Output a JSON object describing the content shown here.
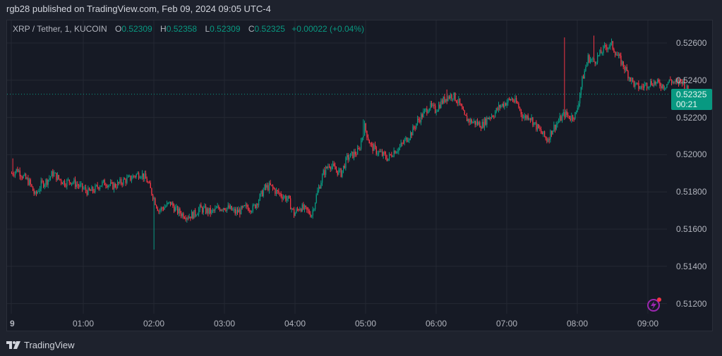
{
  "header": {
    "published_line": "rgb28 published on TradingView.com, Feb 09, 2024 09:05 UTC-4"
  },
  "legend": {
    "symbol": "XRP / Tether, 1, KUCOIN",
    "open_key": "O",
    "open": "0.52309",
    "high_key": "H",
    "high": "0.52358",
    "low_key": "L",
    "low": "0.52309",
    "close_key": "C",
    "close": "0.52325",
    "change": "+0.00022 (+0.04%)"
  },
  "last_price": {
    "value": "0.52325",
    "countdown": "00:21"
  },
  "footer": {
    "brand": "TradingView"
  },
  "colors": {
    "up": "#089981",
    "down": "#f23645",
    "background": "#161a25",
    "frame": "#1e222d",
    "grid": "#242833",
    "text": "#b2b5be",
    "alert_icon": "#9c27b0"
  },
  "chart_data": {
    "type": "candlestick",
    "title": "XRP / Tether, 1, KUCOIN",
    "interval": "1 minute",
    "xlabel": "",
    "ylabel": "",
    "y_tick_labels": [
      "0.52600",
      "0.52400",
      "0.52200",
      "0.52000",
      "0.51800",
      "0.51600",
      "0.51400",
      "0.51200"
    ],
    "ylim": [
      0.5117,
      0.5274
    ],
    "x_tick_labels": [
      "9",
      "01:00",
      "02:00",
      "03:00",
      "04:00",
      "05:00",
      "06:00",
      "07:00",
      "08:00",
      "09:00"
    ],
    "grid": true,
    "last_price_line": 0.52325,
    "ohlc_last": {
      "open": 0.52309,
      "high": 0.52358,
      "low": 0.52309,
      "close": 0.52325,
      "change": 0.00022,
      "change_pct": 0.04
    },
    "approx_close_path_5min": {
      "start_time": "00:00",
      "step_minutes": 5,
      "closes": [
        0.519,
        0.5192,
        0.5188,
        0.5185,
        0.5178,
        0.5184,
        0.5186,
        0.519,
        0.5187,
        0.5185,
        0.5186,
        0.5184,
        0.5182,
        0.518,
        0.5181,
        0.5184,
        0.5185,
        0.5183,
        0.5184,
        0.5186,
        0.5187,
        0.5189,
        0.519,
        0.5186,
        0.5178,
        0.517,
        0.5172,
        0.5174,
        0.517,
        0.5168,
        0.5167,
        0.5168,
        0.5171,
        0.517,
        0.5169,
        0.5171,
        0.5172,
        0.5171,
        0.5169,
        0.517,
        0.5172,
        0.5171,
        0.5176,
        0.5182,
        0.5183,
        0.518,
        0.5178,
        0.5176,
        0.5168,
        0.5172,
        0.517,
        0.5168,
        0.518,
        0.519,
        0.5195,
        0.5192,
        0.519,
        0.5198,
        0.52,
        0.5202,
        0.5215,
        0.5205,
        0.5202,
        0.52,
        0.5198,
        0.5202,
        0.5204,
        0.5208,
        0.5212,
        0.5218,
        0.5222,
        0.5226,
        0.5224,
        0.5228,
        0.5231,
        0.5232,
        0.5228,
        0.522,
        0.5218,
        0.5217,
        0.5216,
        0.522,
        0.5222,
        0.5226,
        0.5228,
        0.523,
        0.5227,
        0.522,
        0.5221,
        0.5216,
        0.5212,
        0.5208,
        0.5214,
        0.5218,
        0.5222,
        0.522,
        0.5222,
        0.524,
        0.5252,
        0.525,
        0.5254,
        0.5258,
        0.5259,
        0.5253,
        0.5248,
        0.5242,
        0.5237,
        0.5236,
        0.5238,
        0.5239,
        0.5238,
        0.5237,
        0.524,
        0.5238,
        0.524,
        0.5234,
        0.5232
      ]
    },
    "notable_points": [
      {
        "time": "00:01",
        "high": 0.5198
      },
      {
        "time": "02:01",
        "low": 0.5149,
        "note": "sharp wick down"
      },
      {
        "time": "04:59",
        "high": 0.5219
      },
      {
        "time": "06:10",
        "high": 0.5235
      },
      {
        "time": "07:37",
        "low": 0.5206
      },
      {
        "time": "07:50",
        "high": 0.5263
      },
      {
        "time": "08:15",
        "high": 0.5264
      }
    ]
  }
}
